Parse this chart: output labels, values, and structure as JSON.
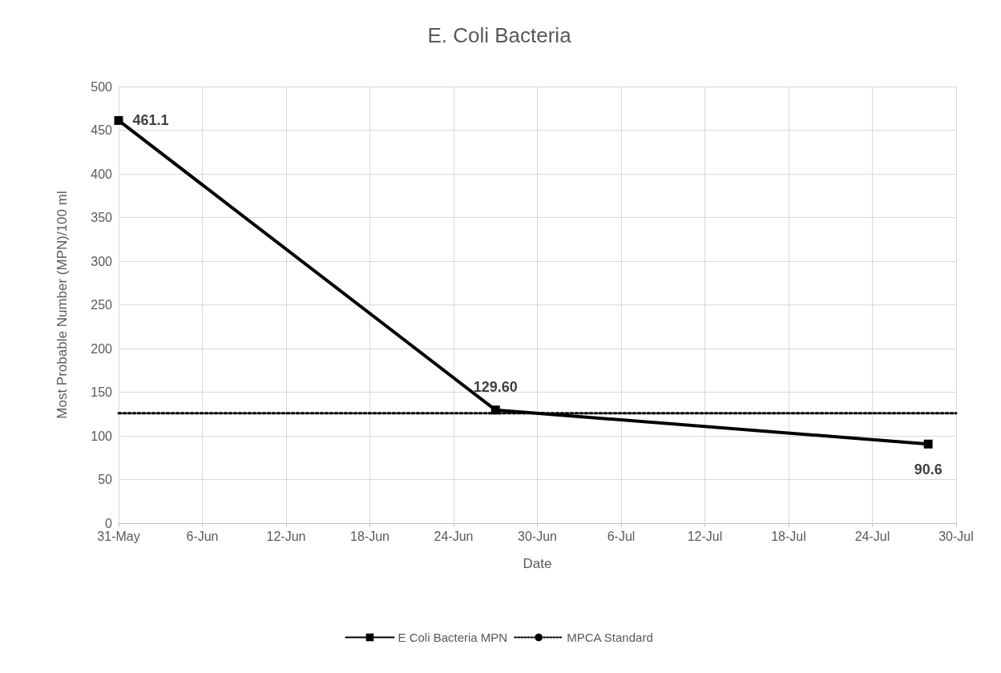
{
  "chart_data": {
    "type": "line",
    "title": "E. Coli Bacteria",
    "xlabel": "Date",
    "ylabel": "Most Probable Number (MPN)/100 ml",
    "xlim": [
      "--05-31",
      "--07-30"
    ],
    "xticks": [
      {
        "value": "--05-31",
        "label": "31-May"
      },
      {
        "value": "--06-06",
        "label": "6-Jun"
      },
      {
        "value": "--06-12",
        "label": "12-Jun"
      },
      {
        "value": "--06-18",
        "label": "18-Jun"
      },
      {
        "value": "--06-24",
        "label": "24-Jun"
      },
      {
        "value": "--06-30",
        "label": "30-Jun"
      },
      {
        "value": "--07-06",
        "label": "6-Jul"
      },
      {
        "value": "--07-12",
        "label": "12-Jul"
      },
      {
        "value": "--07-18",
        "label": "18-Jul"
      },
      {
        "value": "--07-24",
        "label": "24-Jul"
      },
      {
        "value": "--07-30",
        "label": "30-Jul"
      }
    ],
    "ylim": [
      0,
      500
    ],
    "yticks": [
      0,
      50,
      100,
      150,
      200,
      250,
      300,
      350,
      400,
      450,
      500
    ],
    "series": [
      {
        "name": "E Coli Bacteria MPN",
        "color": "#000000",
        "x": [
          "--05-31",
          "--06-27",
          "--07-28"
        ],
        "values": [
          461.1,
          129.6,
          90.6
        ],
        "value_labels": [
          "461.1",
          "129.60",
          "90.6"
        ],
        "marker": "square",
        "line_style": "solid"
      },
      {
        "name": "MPCA Standard",
        "color": "#000000",
        "x": [
          "--05-31",
          "--07-30"
        ],
        "values": [
          126,
          126
        ],
        "marker": "none",
        "line_style": "dotted"
      }
    ],
    "grid": true,
    "legend": "bottom"
  }
}
